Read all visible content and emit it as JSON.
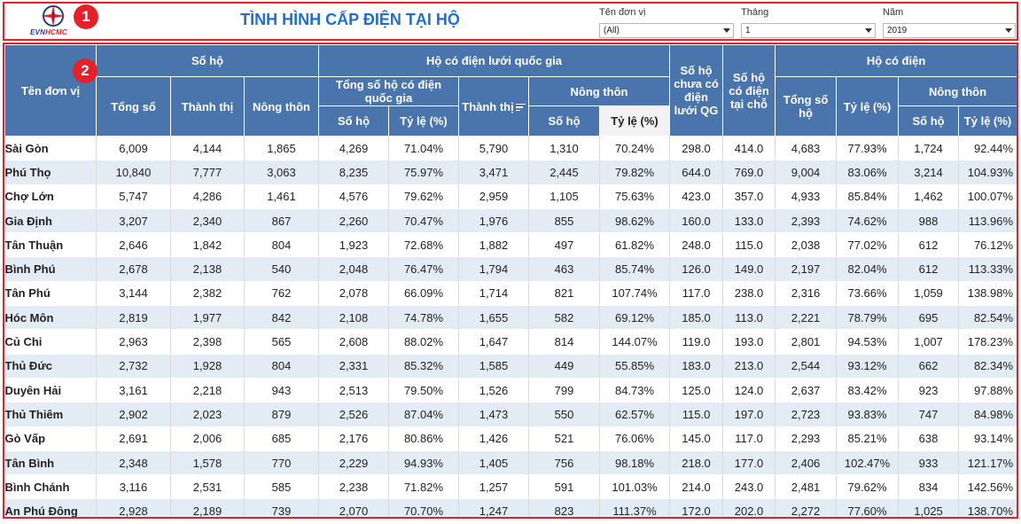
{
  "header": {
    "logo_text_evn": "EVN",
    "logo_text_hcmc": "HCMC",
    "title": "TÌNH HÌNH CẤP ĐIỆN TẠI HỘ",
    "badge1": "1",
    "badge2": "2"
  },
  "filters": {
    "unit": {
      "label": "Tên đơn vị",
      "value": "(All)"
    },
    "month": {
      "label": "Tháng",
      "value": "1"
    },
    "year": {
      "label": "Năm",
      "value": "2019"
    }
  },
  "columns": {
    "unit_name": "Tên đơn vị",
    "so_ho": "Số hộ",
    "tong_so": "Tổng số",
    "thanh_thi": "Thành thị",
    "nong_thon": "Nông thôn",
    "ho_co_dien_luoi": "Hộ có điện lưới quốc gia",
    "tong_so_ho_co_dien": "Tổng số hộ có điện quốc gia",
    "so_ho_sub": "Số hộ",
    "ty_le": "Tỷ lệ (%)",
    "thanh_thi_sub": "Thành thị",
    "nong_thon_sub": "Nông thôn",
    "so_ho_chua": "Số hộ chưa có điện lưới QG",
    "so_ho_tai_cho": "Số hộ có điện tại chỗ",
    "ho_co_dien": "Hộ có điện",
    "tong_so_ho": "Tổng số hộ",
    "ty_le_b": "Tỷ lệ (%)",
    "nong_thon_b": "Nông thôn",
    "so_ho_b": "Số hộ",
    "ty_le_c": "Tỷ lệ (%)"
  },
  "rows": [
    [
      "Sài Gòn",
      "6,009",
      "4,144",
      "1,865",
      "4,269",
      "71.04%",
      "5,790",
      "1,310",
      "70.24%",
      "298.0",
      "414.0",
      "4,683",
      "77.93%",
      "1,724",
      "92.44%"
    ],
    [
      "Phú Thọ",
      "10,840",
      "7,777",
      "3,063",
      "8,235",
      "75.97%",
      "3,471",
      "2,445",
      "79.82%",
      "644.0",
      "769.0",
      "9,004",
      "83.06%",
      "3,214",
      "104.93%"
    ],
    [
      "Chợ Lớn",
      "5,747",
      "4,286",
      "1,461",
      "4,576",
      "79.62%",
      "2,959",
      "1,105",
      "75.63%",
      "423.0",
      "357.0",
      "4,933",
      "85.84%",
      "1,462",
      "100.07%"
    ],
    [
      "Gia Định",
      "3,207",
      "2,340",
      "867",
      "2,260",
      "70.47%",
      "1,976",
      "855",
      "98.62%",
      "160.0",
      "133.0",
      "2,393",
      "74.62%",
      "988",
      "113.96%"
    ],
    [
      "Tân Thuận",
      "2,646",
      "1,842",
      "804",
      "1,923",
      "72.68%",
      "1,882",
      "497",
      "61.82%",
      "248.0",
      "115.0",
      "2,038",
      "77.02%",
      "612",
      "76.12%"
    ],
    [
      "Bình Phú",
      "2,678",
      "2,138",
      "540",
      "2,048",
      "76.47%",
      "1,794",
      "463",
      "85.74%",
      "126.0",
      "149.0",
      "2,197",
      "82.04%",
      "612",
      "113.33%"
    ],
    [
      "Tân Phú",
      "3,144",
      "2,382",
      "762",
      "2,078",
      "66.09%",
      "1,714",
      "821",
      "107.74%",
      "117.0",
      "238.0",
      "2,316",
      "73.66%",
      "1,059",
      "138.98%"
    ],
    [
      "Hóc Môn",
      "2,819",
      "1,977",
      "842",
      "2,108",
      "74.78%",
      "1,655",
      "582",
      "69.12%",
      "185.0",
      "113.0",
      "2,221",
      "78.79%",
      "695",
      "82.54%"
    ],
    [
      "Củ Chi",
      "2,963",
      "2,398",
      "565",
      "2,608",
      "88.02%",
      "1,647",
      "814",
      "144.07%",
      "119.0",
      "193.0",
      "2,801",
      "94.53%",
      "1,007",
      "178.23%"
    ],
    [
      "Thủ Đức",
      "2,732",
      "1,928",
      "804",
      "2,331",
      "85.32%",
      "1,585",
      "449",
      "55.85%",
      "183.0",
      "213.0",
      "2,544",
      "93.12%",
      "662",
      "82.34%"
    ],
    [
      "Duyên Hải",
      "3,161",
      "2,218",
      "943",
      "2,513",
      "79.50%",
      "1,526",
      "799",
      "84.73%",
      "125.0",
      "124.0",
      "2,637",
      "83.42%",
      "923",
      "97.88%"
    ],
    [
      "Thủ Thiêm",
      "2,902",
      "2,023",
      "879",
      "2,526",
      "87.04%",
      "1,473",
      "550",
      "62.57%",
      "115.0",
      "197.0",
      "2,723",
      "93.83%",
      "747",
      "84.98%"
    ],
    [
      "Gò Vấp",
      "2,691",
      "2,006",
      "685",
      "2,176",
      "80.86%",
      "1,426",
      "521",
      "76.06%",
      "145.0",
      "117.0",
      "2,293",
      "85.21%",
      "638",
      "93.14%"
    ],
    [
      "Tân Bình",
      "2,348",
      "1,578",
      "770",
      "2,229",
      "94.93%",
      "1,405",
      "756",
      "98.18%",
      "218.0",
      "177.0",
      "2,406",
      "102.47%",
      "933",
      "121.17%"
    ],
    [
      "Bình Chánh",
      "3,116",
      "2,531",
      "585",
      "2,238",
      "71.82%",
      "1,257",
      "591",
      "101.03%",
      "214.0",
      "243.0",
      "2,481",
      "79.62%",
      "834",
      "142.56%"
    ],
    [
      "An Phú Đông",
      "2,928",
      "2,189",
      "739",
      "2,070",
      "70.70%",
      "1,247",
      "823",
      "111.37%",
      "172.0",
      "202.0",
      "2,272",
      "77.60%",
      "1,025",
      "138.70%"
    ]
  ],
  "colors": {
    "header_bg": "#4a75ac",
    "row_alt": "#e3ebf5",
    "accent_red": "#e4202a",
    "title_blue": "#1f6fd0"
  },
  "icons": {
    "logo": "evn-star-logo-icon",
    "sort": "sort-icon",
    "dropdown": "chevron-down-icon"
  }
}
